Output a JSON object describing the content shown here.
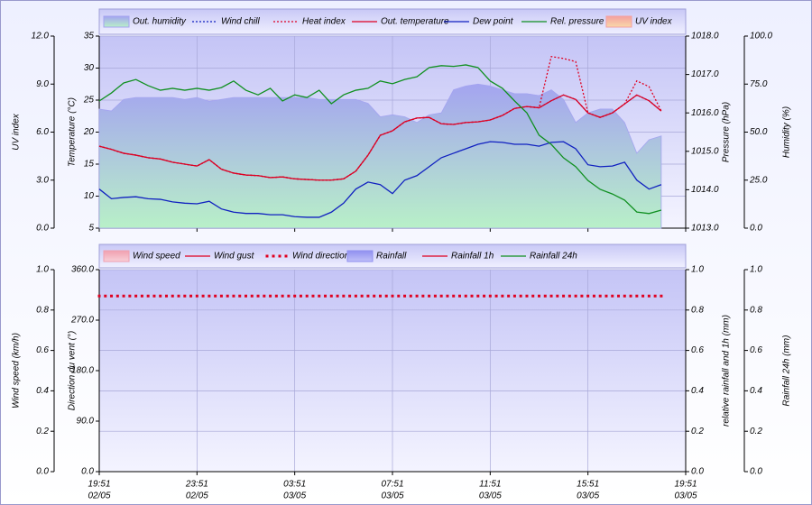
{
  "chart_data": [
    {
      "type": "line",
      "xlim": [
        0,
        24
      ],
      "x": [
        0,
        0.5,
        1,
        1.5,
        2,
        2.5,
        3,
        3.5,
        4,
        4.5,
        5,
        5.5,
        6,
        6.5,
        7,
        7.5,
        8,
        8.5,
        9,
        9.5,
        10,
        10.5,
        11,
        11.5,
        12,
        12.5,
        13,
        13.5,
        14,
        14.5,
        15,
        15.5,
        16,
        16.5,
        17,
        17.5,
        18,
        18.5,
        19,
        19.5,
        20,
        20.5,
        21,
        21.5,
        22,
        22.5,
        23
      ],
      "axes": [
        {
          "label": "UV index",
          "lim": [
            0,
            12
          ],
          "ticks": [
            {
              "value": 0,
              "label": "0.0"
            },
            {
              "value": 3,
              "label": "3.0"
            },
            {
              "value": 6,
              "label": "6.0"
            },
            {
              "value": 9,
              "label": "9.0"
            },
            {
              "value": 12,
              "label": "12.0"
            }
          ]
        },
        {
          "label": "Temperature (°C)",
          "lim": [
            5,
            35
          ],
          "ticks": [
            5,
            10,
            15,
            20,
            25,
            30,
            35
          ],
          "grid": true
        },
        {
          "label": "Pressure (hPa)",
          "lim": [
            1013,
            1018
          ],
          "ticks": [
            {
              "value": 1013,
              "label": "1013.0"
            },
            {
              "value": 1014,
              "label": "1014.0"
            },
            {
              "value": 1015,
              "label": "1015.0"
            },
            {
              "value": 1016,
              "label": "1016.0"
            },
            {
              "value": 1017,
              "label": "1017.0"
            },
            {
              "value": 1018,
              "label": "1018.0"
            }
          ]
        },
        {
          "label": "Humidity (%)",
          "lim": [
            0,
            100
          ],
          "ticks": [
            {
              "value": 0,
              "label": "0.0"
            },
            {
              "value": 25,
              "label": "25.0"
            },
            {
              "value": 50,
              "label": "50.0"
            },
            {
              "value": 75,
              "label": "75.0"
            },
            {
              "value": 100,
              "label": "100.0"
            }
          ]
        }
      ],
      "series": [
        {
          "name": "Out. humidity",
          "style": "area",
          "axis": 3,
          "color": "#a4a4f0",
          "fill_to": "#b8f0c8",
          "values": [
            62,
            61,
            67,
            68,
            68,
            68,
            68,
            67,
            68,
            66,
            67,
            68,
            68,
            68,
            68,
            68,
            68,
            68,
            67,
            67,
            67,
            67,
            65,
            58,
            59,
            58,
            55,
            59,
            60,
            72,
            74,
            75,
            74,
            72,
            70,
            70,
            69,
            72,
            67,
            55,
            60,
            62,
            62,
            55,
            39,
            46,
            48
          ]
        },
        {
          "name": "Wind chill",
          "style": "dotted",
          "axis": 1,
          "color": "#1020c0",
          "values": [
            17.8,
            17.3,
            16.7,
            16.4,
            16.0,
            15.8,
            15.3,
            15.0,
            14.7,
            15.7,
            14.2,
            13.6,
            13.3,
            13.2,
            12.9,
            13.0,
            12.7,
            12.6,
            12.5,
            12.5,
            12.7,
            13.9,
            16.4,
            19.5,
            20.2,
            21.6,
            22.2,
            22.3,
            21.3,
            21.2,
            21.5,
            21.6,
            21.9,
            22.6,
            23.7,
            24.0,
            23.8,
            24.9,
            25.8,
            25.1,
            23.0,
            22.3,
            23.0,
            24.4,
            25.8,
            24.9,
            23.3
          ]
        },
        {
          "name": "Heat index",
          "style": "dotted",
          "axis": 1,
          "color": "#e00020",
          "values": [
            17.8,
            17.3,
            16.7,
            16.4,
            16.0,
            15.8,
            15.3,
            15.0,
            14.7,
            15.7,
            14.2,
            13.6,
            13.3,
            13.2,
            12.9,
            13.0,
            12.7,
            12.6,
            12.5,
            12.5,
            12.7,
            13.9,
            16.4,
            19.5,
            20.2,
            21.6,
            22.2,
            22.3,
            21.3,
            21.2,
            21.5,
            21.6,
            21.9,
            22.6,
            23.7,
            24.0,
            23.8,
            31.8,
            31.5,
            31.0,
            23.0,
            22.3,
            23.0,
            24.4,
            28.0,
            27.1,
            23.3
          ]
        },
        {
          "name": "Out. temperature",
          "style": "line",
          "axis": 1,
          "color": "#e00020",
          "values": [
            17.8,
            17.3,
            16.7,
            16.4,
            16.0,
            15.8,
            15.3,
            15.0,
            14.7,
            15.7,
            14.2,
            13.6,
            13.3,
            13.2,
            12.9,
            13.0,
            12.7,
            12.6,
            12.5,
            12.5,
            12.7,
            13.9,
            16.4,
            19.5,
            20.2,
            21.6,
            22.2,
            22.3,
            21.3,
            21.2,
            21.5,
            21.6,
            21.9,
            22.6,
            23.7,
            24.0,
            23.8,
            24.9,
            25.8,
            25.1,
            23.0,
            22.3,
            23.0,
            24.4,
            25.8,
            24.9,
            23.3
          ]
        },
        {
          "name": "Dew point",
          "style": "line",
          "axis": 1,
          "color": "#1020c0",
          "values": [
            11.1,
            9.6,
            9.8,
            9.9,
            9.6,
            9.5,
            9.1,
            8.9,
            8.8,
            9.2,
            8.0,
            7.5,
            7.3,
            7.3,
            7.1,
            7.1,
            6.8,
            6.7,
            6.7,
            7.5,
            8.9,
            11.1,
            12.2,
            11.8,
            10.4,
            12.5,
            13.2,
            14.6,
            16.0,
            16.7,
            17.4,
            18.1,
            18.5,
            18.4,
            18.1,
            18.1,
            17.8,
            18.4,
            18.5,
            17.4,
            14.9,
            14.6,
            14.7,
            15.3,
            12.5,
            11.1,
            11.8
          ]
        },
        {
          "name": "Rel. pressure",
          "style": "line",
          "axis": 2,
          "color": "#109020",
          "values": [
            1016.31,
            1016.52,
            1016.78,
            1016.87,
            1016.71,
            1016.59,
            1016.64,
            1016.59,
            1016.64,
            1016.59,
            1016.66,
            1016.83,
            1016.59,
            1016.47,
            1016.64,
            1016.31,
            1016.47,
            1016.4,
            1016.59,
            1016.24,
            1016.47,
            1016.59,
            1016.64,
            1016.83,
            1016.76,
            1016.87,
            1016.94,
            1017.18,
            1017.23,
            1017.21,
            1017.25,
            1017.18,
            1016.83,
            1016.64,
            1016.31,
            1016.0,
            1015.42,
            1015.18,
            1014.83,
            1014.6,
            1014.24,
            1014.01,
            1013.89,
            1013.73,
            1013.42,
            1013.38,
            1013.47
          ]
        },
        {
          "name": "UV index",
          "style": "area",
          "axis": 0,
          "color": "#f4a0a0",
          "fill_to": "#f8d8a8"
        }
      ]
    },
    {
      "type": "line",
      "xlim": [
        0,
        24
      ],
      "x": [
        0,
        0.5,
        1,
        1.5,
        2,
        2.5,
        3,
        3.5,
        4,
        4.5,
        5,
        5.5,
        6,
        6.5,
        7,
        7.5,
        8,
        8.5,
        9,
        9.5,
        10,
        10.5,
        11,
        11.5,
        12,
        12.5,
        13,
        13.5,
        14,
        14.5,
        15,
        15.5,
        16,
        16.5,
        17,
        17.5,
        18,
        18.5,
        19,
        19.5,
        20,
        20.5,
        21,
        21.5,
        22,
        22.5,
        23
      ],
      "xticks": [
        {
          "value": 0,
          "label": "19:51",
          "date": "02/05"
        },
        {
          "value": 4,
          "label": "23:51",
          "date": "02/05"
        },
        {
          "value": 8,
          "label": "03:51",
          "date": "03/05"
        },
        {
          "value": 12,
          "label": "07:51",
          "date": "03/05"
        },
        {
          "value": 16,
          "label": "11:51",
          "date": "03/05"
        },
        {
          "value": 20,
          "label": "15:51",
          "date": "03/05"
        },
        {
          "value": 24,
          "label": "19:51",
          "date": "03/05"
        }
      ],
      "axes": [
        {
          "label": "Wind speed (km/h)",
          "lim": [
            0,
            1
          ],
          "ticks": [
            {
              "value": 0,
              "label": "0.0"
            },
            {
              "value": 0.2,
              "label": "0.2"
            },
            {
              "value": 0.4,
              "label": "0.4"
            },
            {
              "value": 0.6,
              "label": "0.6"
            },
            {
              "value": 0.8,
              "label": "0.8"
            },
            {
              "value": 1,
              "label": "1.0"
            }
          ],
          "grid": true
        },
        {
          "label": "Direction du vent (°)",
          "lim": [
            0,
            360
          ],
          "ticks": [
            {
              "value": 0,
              "label": "0.0"
            },
            {
              "value": 90,
              "label": "90.0"
            },
            {
              "value": 180,
              "label": "180.0"
            },
            {
              "value": 270,
              "label": "270.0"
            },
            {
              "value": 360,
              "label": "360.0"
            }
          ]
        },
        {
          "label": "relative rainfall and 1h (mm)",
          "lim": [
            0,
            1
          ],
          "ticks": [
            {
              "value": 0,
              "label": "0.0"
            },
            {
              "value": 0.2,
              "label": "0.2"
            },
            {
              "value": 0.4,
              "label": "0.4"
            },
            {
              "value": 0.6,
              "label": "0.6"
            },
            {
              "value": 0.8,
              "label": "0.8"
            },
            {
              "value": 1,
              "label": "1.0"
            }
          ]
        },
        {
          "label": "Rainfall 24h (mm)",
          "lim": [
            0,
            1
          ],
          "ticks": [
            {
              "value": 0,
              "label": "0.0"
            },
            {
              "value": 0.2,
              "label": "0.2"
            },
            {
              "value": 0.4,
              "label": "0.4"
            },
            {
              "value": 0.6,
              "label": "0.6"
            },
            {
              "value": 0.8,
              "label": "0.8"
            },
            {
              "value": 1,
              "label": "1.0"
            }
          ]
        }
      ],
      "series": [
        {
          "name": "Wind speed",
          "style": "area",
          "axis": 0,
          "color": "#f0a0b0",
          "fill_to": "#f8d0d8"
        },
        {
          "name": "Wind gust",
          "style": "line",
          "axis": 0,
          "color": "#e00020"
        },
        {
          "name": "Wind direction",
          "style": "points",
          "axis": 1,
          "color": "#e00020",
          "values": [
            313,
            313,
            313,
            313,
            313,
            313,
            313,
            313,
            313,
            313,
            313,
            313,
            313,
            313,
            313,
            313,
            313,
            313,
            313,
            313,
            313,
            313,
            313,
            313,
            313,
            313,
            313,
            313,
            313,
            313,
            313,
            313,
            313,
            313,
            313,
            313,
            313,
            313,
            313,
            313,
            313,
            313,
            313,
            313,
            313,
            313,
            313
          ]
        },
        {
          "name": "Rainfall",
          "style": "area",
          "axis": 2,
          "color": "#9090f0",
          "fill_to": "#c0c0f8"
        },
        {
          "name": "Rainfall 1h",
          "style": "line",
          "axis": 2,
          "color": "#e00020"
        },
        {
          "name": "Rainfall 24h",
          "style": "line",
          "axis": 3,
          "color": "#109020"
        }
      ]
    }
  ]
}
